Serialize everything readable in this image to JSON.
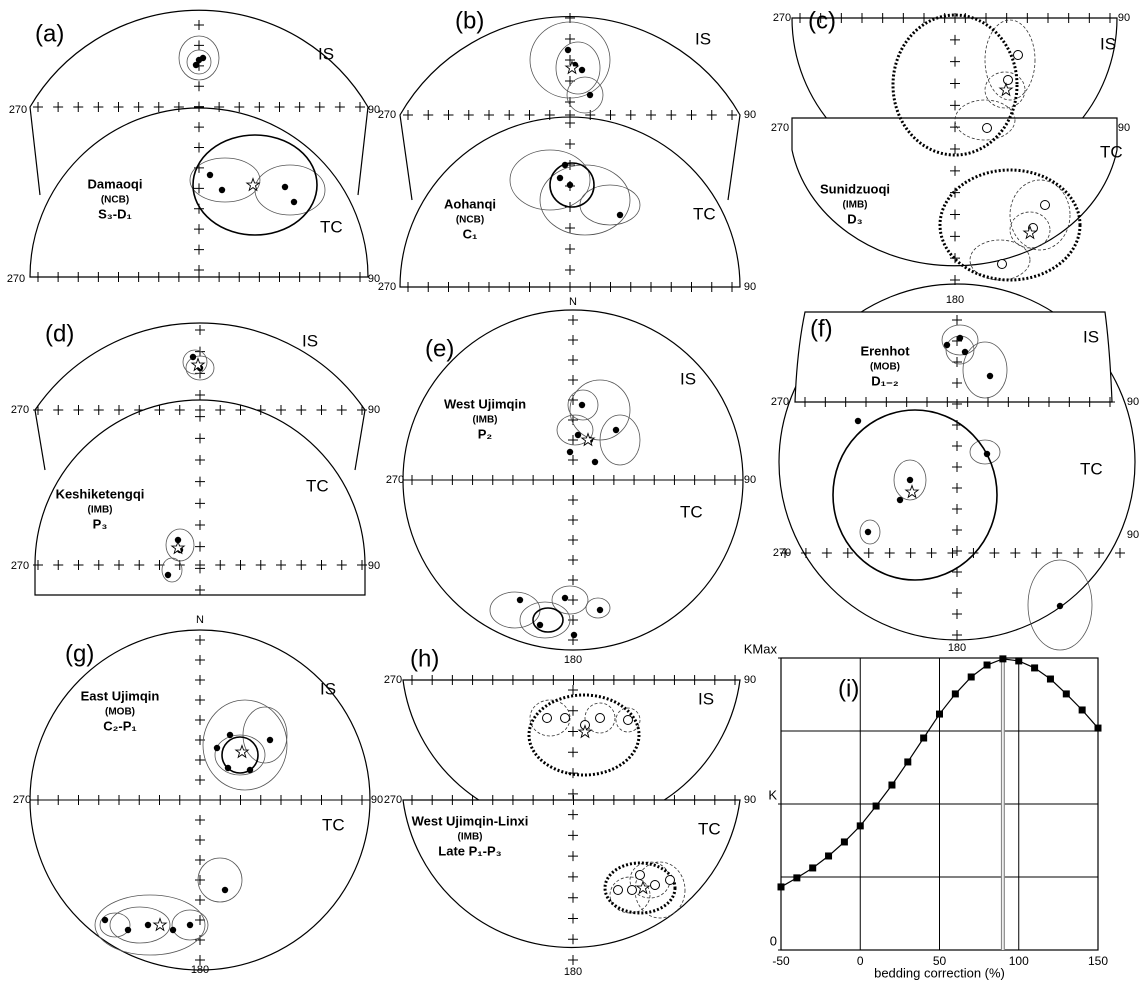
{
  "panels": [
    {
      "label": "(a)",
      "upper_label": "IS",
      "lower_label": "TC",
      "site": [
        "Damaoqi",
        "(NCB)",
        "S₃-D₁"
      ],
      "axis_labels": [
        "270",
        "90",
        "270",
        "90"
      ]
    },
    {
      "label": "(b)",
      "upper_label": "IS",
      "lower_label": "TC",
      "site": [
        "Aohanqi",
        "(NCB)",
        "C₁"
      ],
      "axis_labels": [
        "270",
        "90",
        "270",
        "90"
      ]
    },
    {
      "label": "(c)",
      "upper_label": "IS",
      "lower_label": "TC",
      "site": [
        "Sunidzuoqi",
        "(IMB)",
        "D₃"
      ],
      "axis_labels": [
        "270",
        "90",
        "270",
        "90",
        "180"
      ]
    },
    {
      "label": "(d)",
      "upper_label": "IS",
      "lower_label": "TC",
      "site": [
        "Keshiketengqi",
        "(IMB)",
        "P₃"
      ],
      "axis_labels": [
        "270",
        "90",
        "270",
        "90"
      ]
    },
    {
      "label": "(e)",
      "upper_label": "IS",
      "lower_label": "TC",
      "site": [
        "West Ujimqin",
        "(IMB)",
        "P₂"
      ],
      "axis_labels": [
        "N",
        "270",
        "90",
        "180"
      ]
    },
    {
      "label": "(f)",
      "upper_label": "IS",
      "lower_label": "TC",
      "site": [
        "Erenhot",
        "(MOB)",
        "D₁₋₂"
      ],
      "axis_labels": [
        "270",
        "90",
        "270",
        "90",
        "180"
      ]
    },
    {
      "label": "(g)",
      "upper_label": "IS",
      "lower_label": "TC",
      "site": [
        "East Ujimqin",
        "(MOB)",
        "C₂-P₁"
      ],
      "axis_labels": [
        "N",
        "270",
        "90",
        "180"
      ]
    },
    {
      "label": "(h)",
      "upper_label": "IS",
      "lower_label": "TC",
      "site": [
        "West Ujimqin-Linxi",
        "(IMB)",
        "Late P₁-P₃"
      ],
      "axis_labels": [
        "270",
        "90",
        "270",
        "90",
        "180"
      ]
    }
  ],
  "chart_data": {
    "type": "line",
    "label": "(i)",
    "x_label": "bedding correction (%)",
    "x": [
      -50,
      -40,
      -30,
      -20,
      -10,
      0,
      10,
      20,
      30,
      40,
      50,
      60,
      70,
      80,
      90,
      100,
      110,
      120,
      130,
      140,
      150
    ],
    "values": [
      0.216,
      0.247,
      0.281,
      0.322,
      0.37,
      0.425,
      0.493,
      0.565,
      0.644,
      0.726,
      0.808,
      0.877,
      0.935,
      0.976,
      0.997,
      0.99,
      0.966,
      0.928,
      0.877,
      0.822,
      0.76
    ],
    "color": "#000000",
    "xlim": [
      -50,
      150
    ],
    "xticks": [
      -50,
      0,
      50,
      100,
      150
    ],
    "ylim": [
      0,
      1
    ],
    "yticks": [
      0,
      {
        "value": 0.5,
        "label": "K"
      },
      {
        "value": 1,
        "label": "KMax"
      }
    ],
    "ygrid": [
      0.25,
      0.5,
      0.75
    ],
    "peak_x": 90
  }
}
